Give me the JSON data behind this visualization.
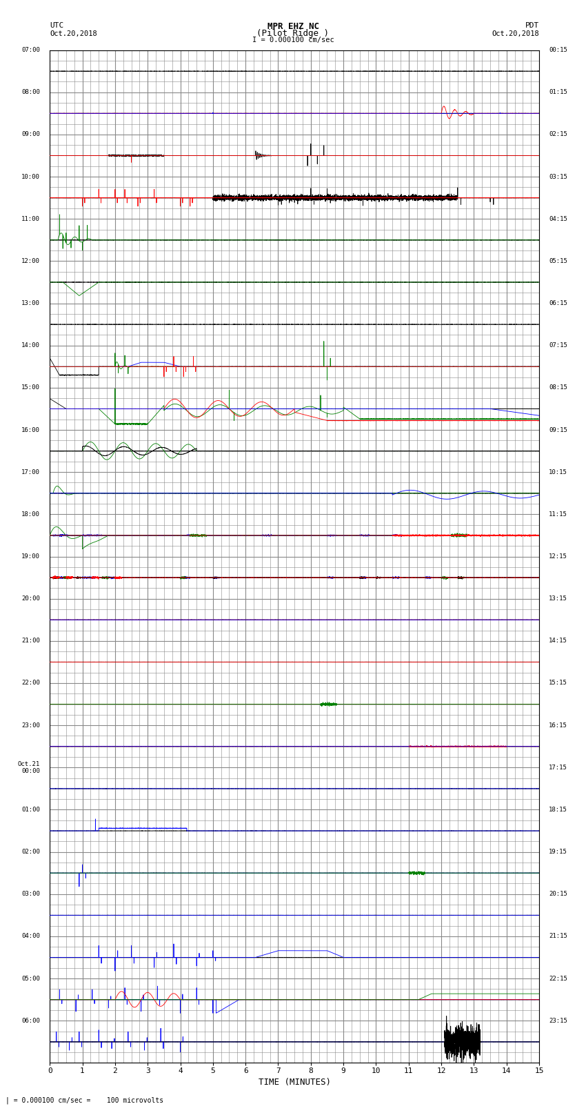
{
  "title_line1": "MPR EHZ NC",
  "title_line2": "(Pilot Ridge )",
  "scale_label": "I = 0.000100 cm/sec",
  "left_header_1": "UTC",
  "left_header_2": "Oct.20,2018",
  "right_header_1": "PDT",
  "right_header_2": "Oct.20,2018",
  "bottom_label": "TIME (MINUTES)",
  "bottom_note": "| = 0.000100 cm/sec =    100 microvolts",
  "left_times": [
    "07:00",
    "08:00",
    "09:00",
    "10:00",
    "11:00",
    "12:00",
    "13:00",
    "14:00",
    "15:00",
    "16:00",
    "17:00",
    "18:00",
    "19:00",
    "20:00",
    "21:00",
    "22:00",
    "23:00",
    "Oct.21\n00:00",
    "01:00",
    "02:00",
    "03:00",
    "04:00",
    "05:00",
    "06:00"
  ],
  "right_times": [
    "00:15",
    "01:15",
    "02:15",
    "03:15",
    "04:15",
    "05:15",
    "06:15",
    "07:15",
    "08:15",
    "09:15",
    "10:15",
    "11:15",
    "12:15",
    "13:15",
    "14:15",
    "15:15",
    "16:15",
    "17:15",
    "18:15",
    "19:15",
    "20:15",
    "21:15",
    "22:15",
    "23:15"
  ],
  "n_rows": 24,
  "n_minutes": 15,
  "bg_color": "#ffffff",
  "grid_color": "#888888",
  "fig_width": 8.5,
  "fig_height": 16.13
}
